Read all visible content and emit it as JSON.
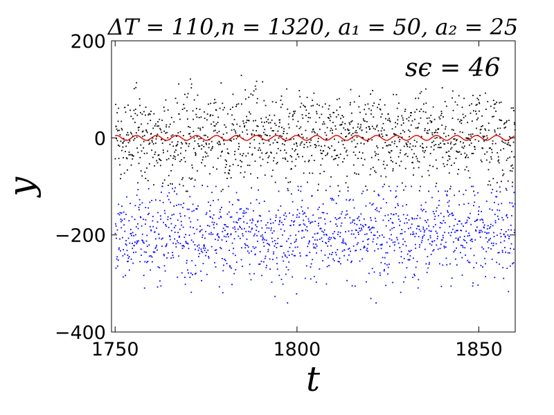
{
  "chart_data": {
    "type": "scatter",
    "title": "ΔT = 110,n = 1320, a₁ = 50, a₂ = 25",
    "annotation": "sϵ = 46",
    "xlabel": "t",
    "ylabel": "y",
    "xlim": [
      1749,
      1860
    ],
    "ylim": [
      -400,
      200
    ],
    "xticks": [
      1750,
      1800,
      1850
    ],
    "yticks": [
      -400,
      -200,
      0,
      200
    ],
    "x_range_observed": [
      1750,
      1860
    ],
    "n_points_per_series": 1320,
    "grid": false,
    "legend": "none",
    "series": [
      {
        "role": "observations",
        "marker": "dot",
        "color": "#000000",
        "center": 0,
        "spread": 46,
        "y_range_observed": [
          -110,
          165
        ]
      },
      {
        "role": "shifted observations",
        "marker": "dot",
        "color": "#0000ff",
        "center": -200,
        "spread": 46,
        "y_range_observed": [
          -340,
          -100
        ]
      },
      {
        "role": "model curve",
        "marker": "line",
        "color": "#e00000",
        "amplitude": 5,
        "period": 5.5,
        "center": 0
      }
    ]
  }
}
